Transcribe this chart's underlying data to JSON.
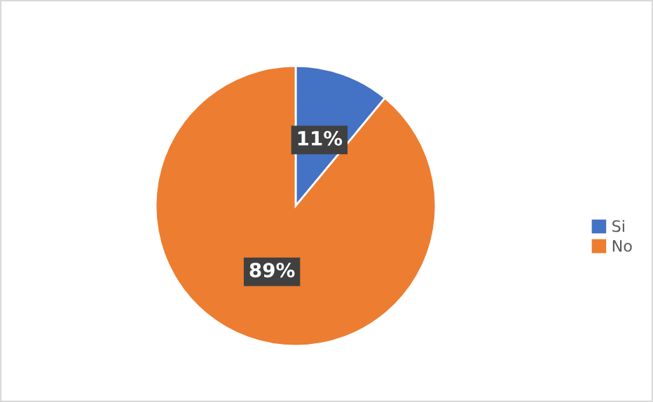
{
  "chart_data": {
    "type": "pie",
    "categories": [
      "Si",
      "No"
    ],
    "values": [
      11,
      89
    ],
    "colors": [
      "#4472c4",
      "#ed7d31"
    ],
    "value_labels": [
      "11%",
      "89%"
    ],
    "legend": "right"
  }
}
